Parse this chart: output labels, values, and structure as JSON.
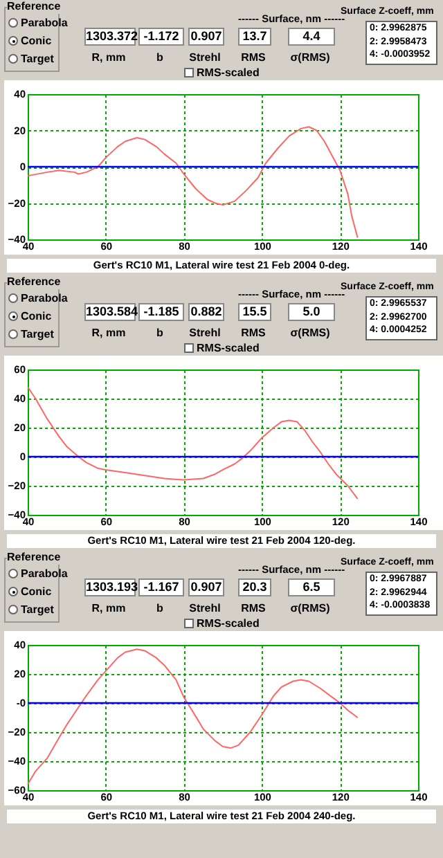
{
  "chart_data": [
    {
      "type": "other",
      "annotations": [
        "Reference",
        "Parabola",
        "Conic",
        "Target",
        "1303.372",
        "-1.172",
        "0.907",
        "13.7",
        "4.4",
        "R, mm",
        "b",
        "Strehl",
        "RMS",
        "σ(RMS)",
        "------ Surface, nm ------",
        "RMS-scaled",
        "Surface Z-coeff, mm",
        "0:  2.9962875",
        "2:  2.9958473",
        "4:  -0.0003952"
      ]
    },
    {
      "type": "line",
      "x": [
        40,
        45,
        48,
        52,
        53,
        55,
        57,
        58,
        60,
        63,
        65,
        68,
        70,
        73,
        75,
        78,
        80,
        83,
        86,
        88,
        90,
        93,
        96,
        99,
        101,
        104,
        107,
        110,
        112,
        114,
        116,
        118,
        120,
        122,
        123,
        124.5
      ],
      "series": [
        {
          "color": "#ff6666",
          "values": [
            -5,
            -3,
            -2,
            -3,
            -4,
            -3,
            -1,
            0,
            5,
            11,
            14,
            16,
            15,
            11,
            7,
            2,
            -4,
            -12,
            -18,
            -20,
            -21,
            -19,
            -13,
            -6,
            2,
            10,
            17,
            21,
            22,
            20,
            14,
            6,
            -2,
            -15,
            -27,
            -39
          ]
        }
      ],
      "xlim": [
        40,
        140
      ],
      "xticks": [
        40,
        60,
        80,
        100,
        120,
        140
      ],
      "ylim": [
        -40,
        40
      ],
      "yticks": [
        -40,
        -20,
        0,
        20,
        40
      ],
      "grid": true,
      "legend": false,
      "ref_lines": [
        {
          "axis": "y",
          "value": 0,
          "color": "#0000ff"
        }
      ],
      "annotations": [
        "Gert's RC10 M1, Lateral wire test 21 Feb 2004 0-deg."
      ]
    },
    {
      "type": "other",
      "annotations": [
        "Reference",
        "Parabola",
        "Conic",
        "Target",
        "1303.584",
        "-1.185",
        "0.882",
        "15.5",
        "5.0",
        "R, mm",
        "b",
        "Strehl",
        "RMS",
        "σ(RMS)",
        "------ Surface, nm ------",
        "RMS-scaled",
        "Surface Z-coeff, mm",
        "0:  2.9965537",
        "2:  2.9962700",
        "4:  0.0004252"
      ]
    },
    {
      "type": "line",
      "x": [
        40,
        42,
        45,
        48,
        50,
        53,
        55,
        58,
        60,
        65,
        70,
        75,
        80,
        85,
        88,
        90,
        93,
        95,
        97,
        100,
        103,
        105,
        107,
        109,
        111,
        113,
        115,
        117,
        119,
        122,
        124.5
      ],
      "series": [
        {
          "color": "#ff6666",
          "values": [
            48,
            40,
            26,
            14,
            7,
            0,
            -4,
            -8,
            -9,
            -11,
            -13,
            -15,
            -16,
            -15,
            -12,
            -9,
            -5,
            -1,
            4,
            13,
            20,
            24,
            25,
            24,
            18,
            10,
            3,
            -5,
            -12,
            -20,
            -29
          ]
        }
      ],
      "xlim": [
        40,
        140
      ],
      "xticks": [
        40,
        60,
        80,
        100,
        120,
        140
      ],
      "ylim": [
        -40,
        60
      ],
      "yticks": [
        -40,
        -20,
        0,
        20,
        40,
        60
      ],
      "grid": true,
      "legend": false,
      "ref_lines": [
        {
          "axis": "y",
          "value": 0,
          "color": "#0000ff"
        }
      ],
      "annotations": [
        "Gert's RC10 M1, Lateral wire test 21 Feb 2004 120-deg."
      ]
    },
    {
      "type": "other",
      "annotations": [
        "Reference",
        "Parabola",
        "Conic",
        "Target",
        "1303.193",
        "-1.167",
        "0.907",
        "20.3",
        "6.5",
        "R, mm",
        "b",
        "Strehl",
        "RMS",
        "σ(RMS)",
        "------ Surface, nm ------",
        "RMS-scaled",
        "Surface Z-coeff, mm",
        "0:  2.9967887",
        "2:  2.9962944",
        "4:  -0.0003838"
      ]
    },
    {
      "type": "line",
      "x": [
        40,
        42,
        45,
        48,
        50,
        53,
        55,
        58,
        60,
        63,
        65,
        68,
        70,
        73,
        75,
        78,
        80,
        83,
        85,
        88,
        90,
        92,
        94,
        97,
        100,
        103,
        105,
        108,
        110,
        112,
        115,
        118,
        120,
        122,
        124.5
      ],
      "series": [
        {
          "color": "#ff6666",
          "values": [
            -56,
            -47,
            -38,
            -24,
            -15,
            -3,
            5,
            16,
            22,
            31,
            35,
            37,
            36,
            31,
            26,
            16,
            4,
            -9,
            -18,
            -26,
            -30,
            -31,
            -29,
            -20,
            -8,
            5,
            11,
            15,
            16,
            15,
            10,
            4,
            0,
            -5,
            -10
          ]
        }
      ],
      "xlim": [
        40,
        140
      ],
      "xticks": [
        40,
        60,
        80,
        100,
        120,
        140
      ],
      "ylim": [
        -60,
        40
      ],
      "yticks": [
        -60,
        -40,
        -20,
        {
          "value": 0,
          "label": "-0"
        },
        20,
        40
      ],
      "grid": true,
      "legend": false,
      "ref_lines": [
        {
          "axis": "y",
          "value": 0,
          "color": "#0000ff"
        }
      ],
      "annotations": [
        "Gert's RC10 M1, Lateral wire test 21 Feb 2004 240-deg."
      ]
    }
  ]
}
